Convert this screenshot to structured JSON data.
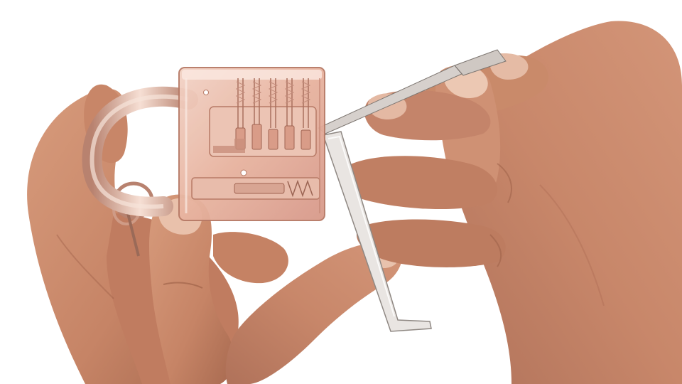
{
  "scene": {
    "background_color": "#ffffff",
    "skin_color": "#c98a6a",
    "skin_shadow_color": "#9a5d45",
    "skin_highlight_color": "#e6b89b",
    "lock_color": "#e7b6a2",
    "lock_edge_color": "#b77a66",
    "tool_color": "#d9d4d0",
    "tool_edge_color": "#8f8883",
    "subjects": [
      "transparent-padlock",
      "left-hand",
      "right-hand",
      "lock-pick",
      "tension-wrench",
      "keyring"
    ]
  }
}
